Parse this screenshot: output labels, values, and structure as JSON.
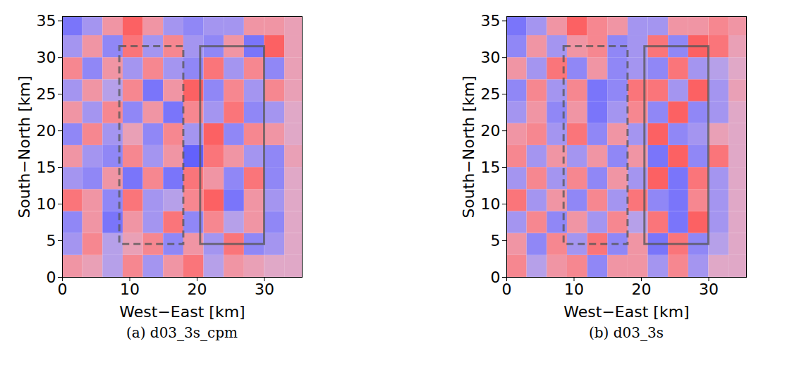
{
  "chart_data": [
    {
      "type": "heatmap",
      "title": "(a) d03_3s_cpm",
      "x_label": "West−East [km]",
      "y_label": "South−North [km]",
      "xlim": [
        0,
        35.6
      ],
      "ylim": [
        0,
        35.6
      ],
      "xticks": [
        0,
        10,
        20,
        30
      ],
      "yticks": [
        0,
        5,
        10,
        15,
        20,
        25,
        30,
        35
      ],
      "color": "bwr",
      "color_range": [
        -1,
        1
      ],
      "x": [
        0,
        3,
        6,
        9,
        12,
        15,
        18,
        21,
        24,
        27,
        30,
        33,
        36
      ],
      "y": [
        0,
        3,
        6,
        9,
        12,
        15,
        18,
        21,
        24,
        27,
        30,
        33,
        36
      ],
      "values": [
        [
          0.3,
          0.2,
          -0.2,
          0.4,
          -0.3,
          0.3,
          0.5,
          -0.2,
          0.3,
          0.2,
          0.1,
          0.1
        ],
        [
          -0.3,
          0.4,
          -0.2,
          0.2,
          0.4,
          -0.4,
          0.3,
          -0.3,
          0.5,
          -0.4,
          -0.3,
          0.1
        ],
        [
          -0.4,
          0.3,
          -0.5,
          0.3,
          -0.3,
          0.5,
          -0.4,
          0.4,
          -0.2,
          0.3,
          -0.4,
          0.1
        ],
        [
          0.5,
          0.3,
          -0.4,
          0.5,
          -0.3,
          -0.2,
          0.4,
          0.6,
          -0.5,
          0.3,
          -0.3,
          0.1
        ],
        [
          -0.3,
          -0.4,
          0.3,
          -0.5,
          0.4,
          -0.5,
          0.5,
          0.3,
          -0.4,
          0.5,
          -0.4,
          0.1
        ],
        [
          0.3,
          -0.3,
          -0.4,
          0.4,
          -0.3,
          0.3,
          -0.6,
          0.5,
          0.3,
          -0.3,
          -0.4,
          0.2
        ],
        [
          -0.4,
          0.4,
          -0.3,
          0.2,
          -0.4,
          0.4,
          -0.3,
          0.6,
          -0.4,
          0.4,
          0.3,
          0.1
        ],
        [
          0.3,
          -0.3,
          0.4,
          -0.4,
          0.3,
          -0.5,
          0.4,
          -0.3,
          0.5,
          -0.4,
          -0.3,
          0.1
        ],
        [
          -0.3,
          0.3,
          -0.2,
          0.4,
          -0.5,
          0.3,
          0.6,
          -0.4,
          0.4,
          -0.3,
          0.4,
          0.2
        ],
        [
          0.4,
          -0.4,
          0.3,
          -0.3,
          0.4,
          -0.3,
          -0.4,
          0.5,
          -0.3,
          0.4,
          -0.4,
          0.2
        ],
        [
          -0.3,
          0.3,
          -0.4,
          0.5,
          -0.3,
          0.4,
          -0.3,
          -0.4,
          0.3,
          -0.5,
          0.6,
          0.2
        ],
        [
          -0.5,
          -0.3,
          0.3,
          0.6,
          0.3,
          -0.3,
          -0.4,
          -0.3,
          -0.3,
          0.3,
          0.3,
          0.2
        ]
      ],
      "boxes": [
        {
          "x1": 8.5,
          "x2": 18,
          "y1": 4.5,
          "y2": 31.5,
          "line_style": "dashed"
        },
        {
          "x1": 20.5,
          "x2": 30,
          "y1": 4.5,
          "y2": 31.5,
          "line_style": "solid"
        }
      ]
    },
    {
      "type": "heatmap",
      "title": "(b) d03_3s",
      "x_label": "West−East [km]",
      "y_label": "South−North [km]",
      "xlim": [
        0,
        35.6
      ],
      "ylim": [
        0,
        35.6
      ],
      "xticks": [
        0,
        10,
        20,
        30
      ],
      "yticks": [
        0,
        5,
        10,
        15,
        20,
        25,
        30,
        35
      ],
      "color": "bwr",
      "color_range": [
        -1,
        1
      ],
      "x": [
        0,
        3,
        6,
        9,
        12,
        15,
        18,
        21,
        24,
        27,
        30,
        33,
        36
      ],
      "y": [
        0,
        3,
        6,
        9,
        12,
        15,
        18,
        21,
        24,
        27,
        30,
        33,
        36
      ],
      "values": [
        [
          0.4,
          -0.2,
          0.3,
          0.4,
          -0.4,
          0.3,
          0.3,
          -0.3,
          0.4,
          -0.3,
          0.1,
          0.1
        ],
        [
          0.3,
          -0.4,
          0.4,
          -0.3,
          0.5,
          -0.4,
          0.3,
          -0.5,
          0.5,
          -0.4,
          -0.2,
          0.1
        ],
        [
          -0.3,
          0.4,
          -0.4,
          0.3,
          -0.3,
          0.4,
          -0.2,
          0.5,
          -0.5,
          0.6,
          -0.3,
          0.1
        ],
        [
          0.5,
          -0.3,
          0.3,
          -0.4,
          0.4,
          -0.3,
          0.5,
          -0.4,
          -0.5,
          0.4,
          -0.3,
          0.1
        ],
        [
          -0.3,
          0.4,
          -0.3,
          0.4,
          -0.4,
          0.3,
          -0.3,
          0.6,
          -0.5,
          0.5,
          -0.3,
          0.1
        ],
        [
          0.4,
          -0.3,
          0.3,
          -0.3,
          0.3,
          -0.4,
          0.3,
          -0.5,
          0.6,
          -0.4,
          0.5,
          0.1
        ],
        [
          0.3,
          0.4,
          -0.3,
          0.5,
          -0.4,
          0.3,
          -0.3,
          0.6,
          -0.4,
          -0.3,
          0.2,
          0.1
        ],
        [
          -0.3,
          0.3,
          -0.4,
          0.3,
          -0.5,
          -0.3,
          0.4,
          -0.4,
          0.6,
          -0.4,
          -0.3,
          0.1
        ],
        [
          -0.4,
          0.4,
          -0.3,
          0.4,
          -0.5,
          -0.4,
          0.5,
          0.5,
          -0.3,
          0.6,
          -0.3,
          0.2
        ],
        [
          0.3,
          -0.3,
          0.5,
          -0.4,
          0.3,
          -0.4,
          -0.3,
          -0.4,
          0.5,
          -0.3,
          -0.2,
          0.1
        ],
        [
          -0.4,
          0.3,
          -0.3,
          0.3,
          0.4,
          -0.4,
          -0.3,
          0.5,
          -0.4,
          0.6,
          0.5,
          0.2
        ],
        [
          -0.5,
          -0.3,
          0.3,
          0.6,
          0.4,
          0.3,
          -0.3,
          -0.3,
          0.3,
          0.3,
          0.4,
          0.3
        ]
      ],
      "boxes": [
        {
          "x1": 8.5,
          "x2": 18,
          "y1": 4.5,
          "y2": 31.5,
          "line_style": "dashed"
        },
        {
          "x1": 20.5,
          "x2": 30,
          "y1": 4.5,
          "y2": 31.5,
          "line_style": "solid"
        }
      ]
    }
  ]
}
